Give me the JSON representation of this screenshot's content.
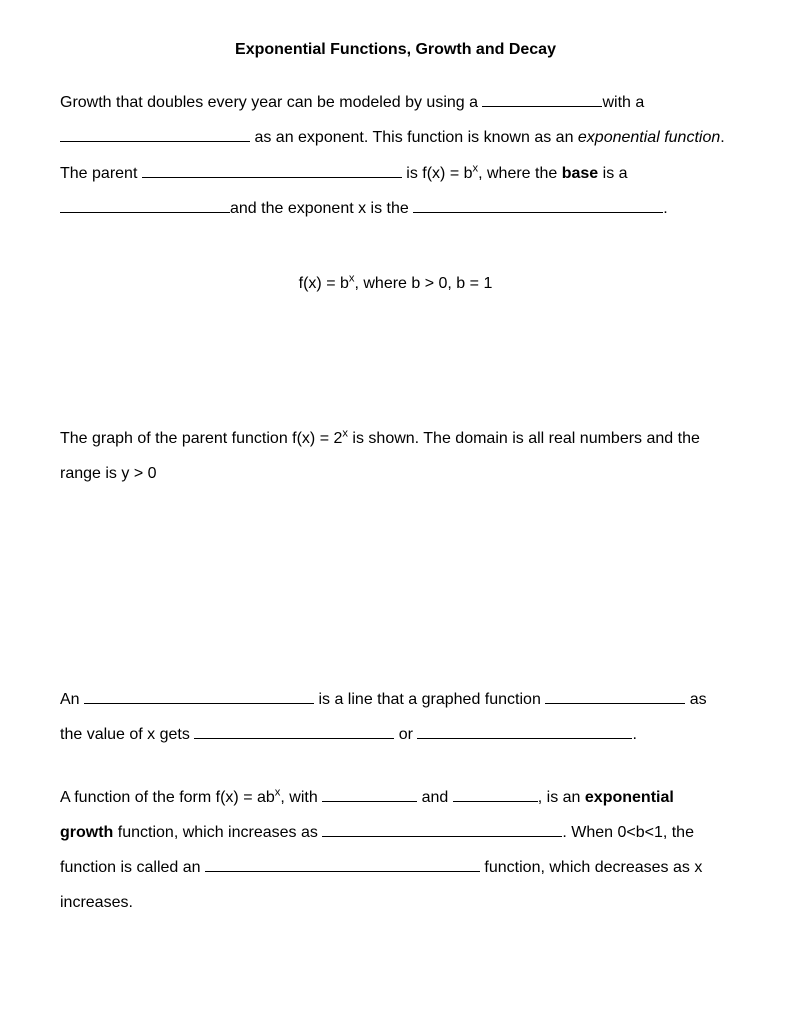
{
  "title": "Exponential Functions, Growth and Decay",
  "p1": {
    "t1": "Growth that doubles every year can be modeled by using a ",
    "t2": "with a",
    "t3": " as an ",
    "t4": "exponent.  This function is known as an ",
    "t5": "exponential function",
    "t6": ".  The parent ",
    "t7": " is f(x) = b",
    "t8": ", where the ",
    "t9": "base",
    "t10": " is a ",
    "t11": "and the exponent x is the ",
    "t12": "."
  },
  "eq": {
    "pre": "f(x) = b",
    "sup": "x",
    "post": ", where b > 0, b = 1"
  },
  "p2": {
    "t1": "The graph of the parent function f(x) = 2",
    "sup": "x",
    "t2": " is shown.  The domain is all real numbers and the range is y > 0"
  },
  "p3": {
    "t1": "An ",
    "t2": " is a line that a graphed function ",
    "t3": " as the value of x gets ",
    "t4": " or ",
    "t5": "."
  },
  "p4": {
    "t1": "A function of the form f(x) = ab",
    "sup": "x",
    "t2": ", with ",
    "t3": " and ",
    "t4": ", is an ",
    "t5": "exponential growth",
    "t6": " function, which increases as ",
    "t7": ".  When 0<b<1, the function is called an ",
    "t8": " function, which decreases as x increases."
  }
}
